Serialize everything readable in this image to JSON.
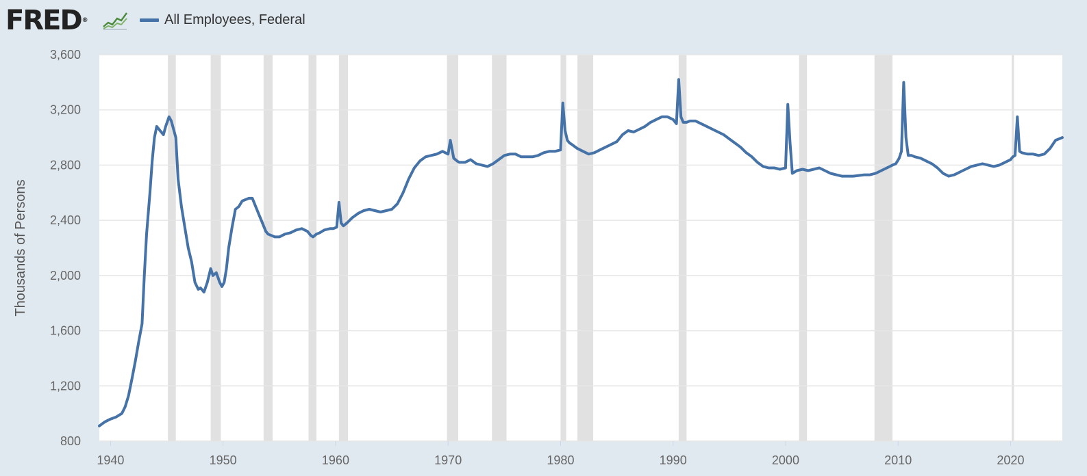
{
  "header": {
    "logo_text": "FRED",
    "logo_mark": "®",
    "trend_icon": "line-chart-icon"
  },
  "chart_data": {
    "type": "line",
    "title": "",
    "xlabel": "",
    "ylabel": "Thousands of Persons",
    "xlim": [
      1939.0,
      2024.6
    ],
    "ylim": [
      800,
      3600
    ],
    "yticks": [
      800,
      1200,
      1600,
      2000,
      2400,
      2800,
      3200,
      3600
    ],
    "ytick_labels": [
      "800",
      "1,200",
      "1,600",
      "2,000",
      "2,400",
      "2,800",
      "3,200",
      "3,600"
    ],
    "xticks": [
      1940,
      1950,
      1960,
      1970,
      1980,
      1990,
      2000,
      2010,
      2020
    ],
    "xtick_labels": [
      "1940",
      "1950",
      "1960",
      "1970",
      "1980",
      "1990",
      "2000",
      "2010",
      "2020"
    ],
    "grid": true,
    "legend_position": "top-left",
    "colors": {
      "series": "#4572a7",
      "recession": "#e1e1e1",
      "grid": "#e6e6e6",
      "plot_bg": "#ffffff"
    },
    "recessions": [
      [
        1945.1,
        1945.8
      ],
      [
        1948.9,
        1949.8
      ],
      [
        1953.6,
        1954.4
      ],
      [
        1957.6,
        1958.3
      ],
      [
        1960.3,
        1961.1
      ],
      [
        1969.9,
        1970.9
      ],
      [
        1973.9,
        1975.2
      ],
      [
        1980.0,
        1980.5
      ],
      [
        1981.5,
        1982.9
      ],
      [
        1990.5,
        1991.2
      ],
      [
        2001.2,
        2001.9
      ],
      [
        2007.9,
        2009.5
      ],
      [
        2020.1,
        2020.3
      ]
    ],
    "series": [
      {
        "name": "All Employees, Federal",
        "x": [
          1939.0,
          1939.5,
          1940.0,
          1940.5,
          1941.0,
          1941.3,
          1941.6,
          1941.9,
          1942.2,
          1942.5,
          1942.8,
          1943.0,
          1943.2,
          1943.5,
          1943.7,
          1943.9,
          1944.1,
          1944.4,
          1944.7,
          1944.9,
          1945.2,
          1945.4,
          1945.6,
          1945.8,
          1946.0,
          1946.3,
          1946.6,
          1946.9,
          1947.2,
          1947.5,
          1947.8,
          1948.0,
          1948.3,
          1948.6,
          1948.9,
          1949.1,
          1949.4,
          1949.7,
          1949.9,
          1950.1,
          1950.3,
          1950.5,
          1950.8,
          1951.1,
          1951.4,
          1951.7,
          1952.0,
          1952.3,
          1952.6,
          1952.9,
          1953.2,
          1953.5,
          1953.8,
          1954.0,
          1954.3,
          1954.6,
          1955.0,
          1955.5,
          1956.0,
          1956.5,
          1957.0,
          1957.5,
          1957.8,
          1958.0,
          1958.3,
          1958.6,
          1959.0,
          1959.5,
          1959.8,
          1960.1,
          1960.3,
          1960.5,
          1960.7,
          1961.0,
          1961.5,
          1962.0,
          1962.5,
          1963.0,
          1963.5,
          1964.0,
          1964.5,
          1965.0,
          1965.5,
          1966.0,
          1966.5,
          1967.0,
          1967.5,
          1968.0,
          1968.5,
          1969.0,
          1969.5,
          1970.0,
          1970.2,
          1970.5,
          1970.8,
          1971.0,
          1971.5,
          1972.0,
          1972.5,
          1973.0,
          1973.5,
          1974.0,
          1974.5,
          1975.0,
          1975.5,
          1976.0,
          1976.5,
          1977.0,
          1977.5,
          1978.0,
          1978.5,
          1979.0,
          1979.5,
          1980.0,
          1980.2,
          1980.4,
          1980.6,
          1980.8,
          1981.0,
          1981.5,
          1982.0,
          1982.5,
          1983.0,
          1983.5,
          1984.0,
          1984.5,
          1985.0,
          1985.5,
          1986.0,
          1986.5,
          1987.0,
          1987.5,
          1988.0,
          1988.5,
          1989.0,
          1989.5,
          1990.0,
          1990.3,
          1990.5,
          1990.7,
          1990.9,
          1991.2,
          1991.5,
          1992.0,
          1992.5,
          1993.0,
          1993.5,
          1994.0,
          1994.5,
          1995.0,
          1995.5,
          1996.0,
          1996.5,
          1997.0,
          1997.5,
          1998.0,
          1998.5,
          1999.0,
          1999.5,
          2000.0,
          2000.2,
          2000.4,
          2000.6,
          2000.8,
          2001.0,
          2001.5,
          2002.0,
          2002.5,
          2003.0,
          2003.5,
          2004.0,
          2004.5,
          2005.0,
          2006.0,
          2007.0,
          2007.5,
          2008.0,
          2008.5,
          2009.0,
          2009.5,
          2009.8,
          2010.1,
          2010.3,
          2010.5,
          2010.7,
          2010.9,
          2011.2,
          2011.5,
          2012.0,
          2012.5,
          2013.0,
          2013.5,
          2014.0,
          2014.5,
          2015.0,
          2015.5,
          2016.0,
          2016.5,
          2017.0,
          2017.5,
          2018.0,
          2018.5,
          2019.0,
          2019.5,
          2020.0,
          2020.2,
          2020.4,
          2020.6,
          2020.8,
          2021.0,
          2021.5,
          2022.0,
          2022.5,
          2023.0,
          2023.5,
          2024.0,
          2024.6
        ],
        "values": [
          910,
          940,
          960,
          975,
          1000,
          1050,
          1130,
          1250,
          1380,
          1520,
          1650,
          2000,
          2300,
          2600,
          2830,
          3000,
          3080,
          3050,
          3020,
          3080,
          3150,
          3120,
          3060,
          3000,
          2700,
          2500,
          2350,
          2200,
          2100,
          1950,
          1900,
          1910,
          1880,
          1950,
          2050,
          2000,
          2020,
          1950,
          1920,
          1950,
          2050,
          2200,
          2350,
          2480,
          2500,
          2540,
          2550,
          2560,
          2560,
          2500,
          2440,
          2380,
          2320,
          2300,
          2290,
          2280,
          2280,
          2300,
          2310,
          2330,
          2340,
          2320,
          2290,
          2280,
          2300,
          2310,
          2330,
          2340,
          2340,
          2350,
          2530,
          2380,
          2360,
          2380,
          2420,
          2450,
          2470,
          2480,
          2470,
          2460,
          2470,
          2480,
          2520,
          2600,
          2700,
          2780,
          2830,
          2860,
          2870,
          2880,
          2900,
          2880,
          2980,
          2850,
          2830,
          2820,
          2820,
          2840,
          2810,
          2800,
          2790,
          2810,
          2840,
          2870,
          2880,
          2880,
          2860,
          2860,
          2860,
          2870,
          2890,
          2900,
          2900,
          2910,
          3250,
          3050,
          2980,
          2960,
          2950,
          2920,
          2900,
          2880,
          2890,
          2910,
          2930,
          2950,
          2970,
          3020,
          3050,
          3040,
          3060,
          3080,
          3110,
          3130,
          3150,
          3150,
          3130,
          3100,
          3420,
          3150,
          3110,
          3110,
          3120,
          3120,
          3100,
          3080,
          3060,
          3040,
          3020,
          2990,
          2960,
          2930,
          2890,
          2860,
          2820,
          2790,
          2780,
          2780,
          2770,
          2780,
          3240,
          2960,
          2740,
          2750,
          2760,
          2770,
          2760,
          2770,
          2780,
          2760,
          2740,
          2730,
          2720,
          2720,
          2730,
          2730,
          2740,
          2760,
          2780,
          2800,
          2810,
          2850,
          2900,
          3400,
          3000,
          2870,
          2870,
          2860,
          2850,
          2830,
          2810,
          2780,
          2740,
          2720,
          2730,
          2750,
          2770,
          2790,
          2800,
          2810,
          2800,
          2790,
          2800,
          2820,
          2840,
          2860,
          2870,
          3150,
          2900,
          2890,
          2880,
          2880,
          2870,
          2880,
          2920,
          2980,
          3000
        ]
      }
    ]
  }
}
